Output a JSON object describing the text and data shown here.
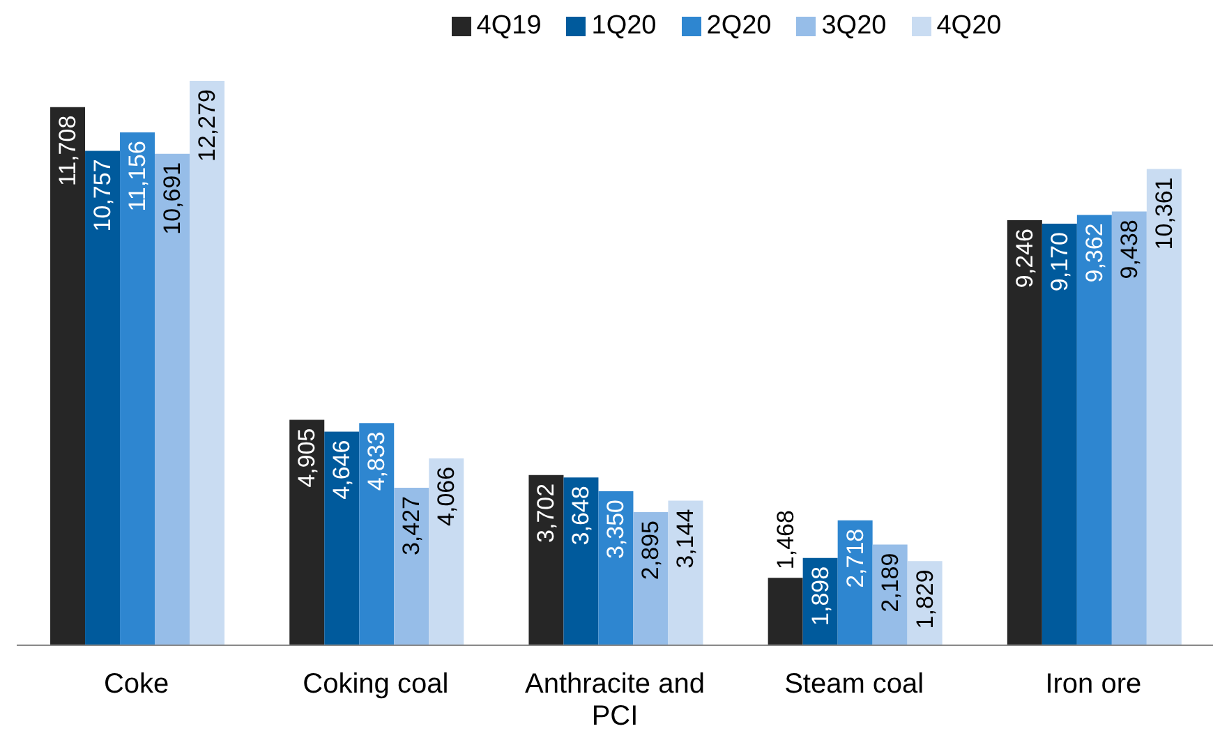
{
  "chart_data": {
    "type": "bar",
    "categories": [
      "Coke",
      "Coking coal",
      "Anthracite and PCI",
      "Steam coal",
      "Iron ore"
    ],
    "series": [
      {
        "name": "4Q19",
        "color": "#262626",
        "values": [
          11708,
          4905,
          3702,
          1468,
          9246
        ],
        "value_labels": [
          "11,708",
          "4,905",
          "3,702",
          "1,468",
          "9,246"
        ]
      },
      {
        "name": "1Q20",
        "color": "#005a9c",
        "values": [
          10757,
          4646,
          3648,
          1898,
          9170
        ],
        "value_labels": [
          "10,757",
          "4,646",
          "3,648",
          "1,898",
          "9,170"
        ]
      },
      {
        "name": "2Q20",
        "color": "#2e86d0",
        "values": [
          11156,
          4833,
          3350,
          2718,
          9362
        ],
        "value_labels": [
          "11,156",
          "4,833",
          "3,350",
          "2,718",
          "9,362"
        ]
      },
      {
        "name": "3Q20",
        "color": "#96bde8",
        "values": [
          10691,
          3427,
          2895,
          2189,
          9438
        ],
        "value_labels": [
          "10,691",
          "3,427",
          "2,895",
          "2,189",
          "9,438"
        ]
      },
      {
        "name": "4Q20",
        "color": "#c9dcf2",
        "values": [
          12279,
          4066,
          3144,
          1829,
          10361
        ],
        "value_labels": [
          "12,279",
          "4,066",
          "3,144",
          "1,829",
          "10,361"
        ]
      }
    ],
    "legend": "top"
  }
}
